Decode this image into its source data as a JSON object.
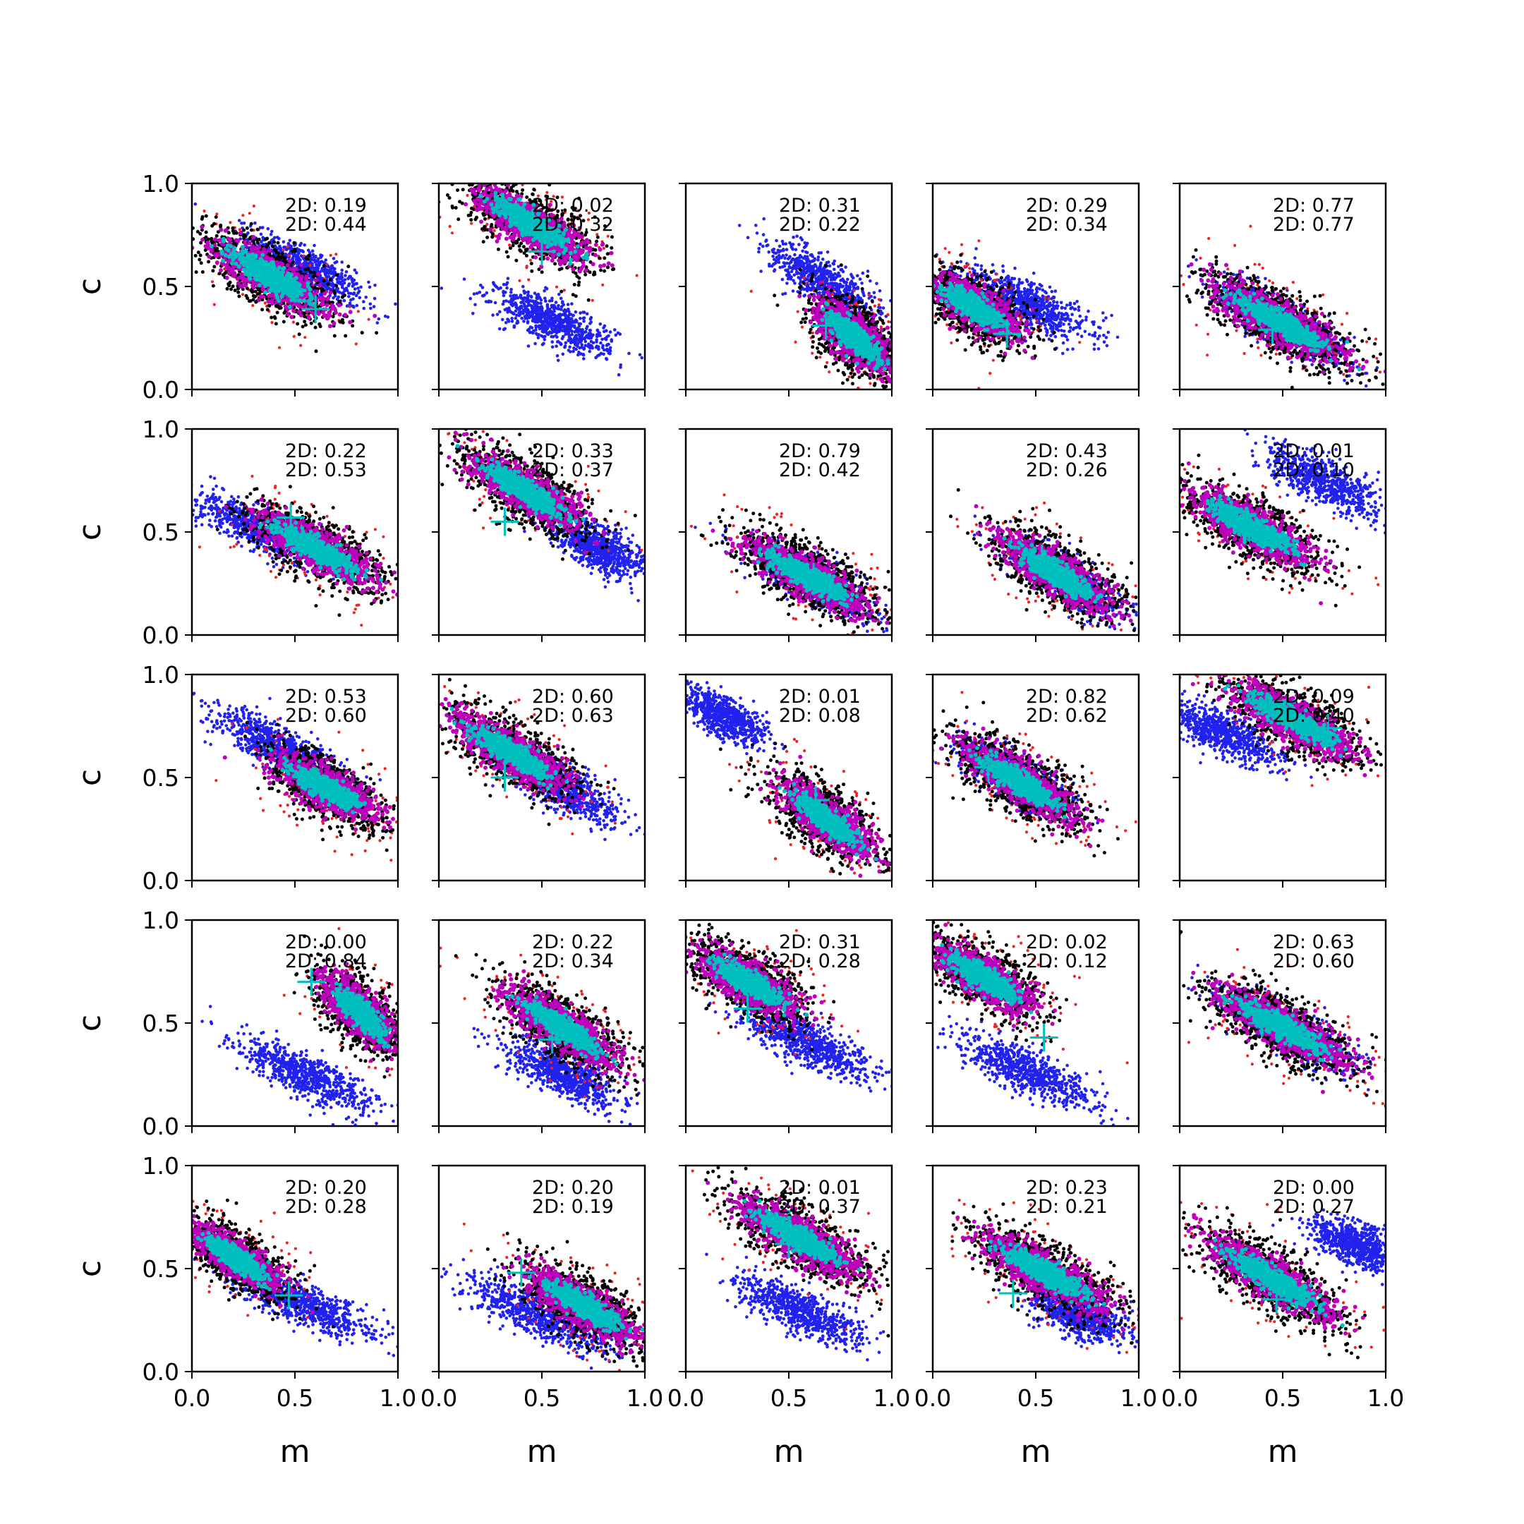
{
  "chart_data": {
    "type": "scatter",
    "layout": {
      "rows": 5,
      "cols": 5
    },
    "xlabel": "m",
    "ylabel": "c",
    "xlim": [
      0,
      1
    ],
    "ylim": [
      0,
      1
    ],
    "xticks": [
      "0.0",
      "0.5",
      "1.0"
    ],
    "yticks": [
      "0.0",
      "0.5",
      "1.0"
    ],
    "grid": false,
    "colors": {
      "blue": "#2222ee",
      "red": "#ee2222",
      "black": "#000000",
      "magenta": "#bf00bf",
      "cyan": "#00bfbf",
      "marker": "#00bfbf"
    },
    "panels": [
      {
        "annotations": [
          "2D: 0.19",
          "2D: 0.44"
        ],
        "truth": [
          0.6,
          0.39
        ],
        "main": {
          "mx": 0.38,
          "cy": 0.55,
          "len": 0.62,
          "wid": 0.1,
          "slope": -0.6
        },
        "blue": {
          "mx": 0.55,
          "cy": 0.58,
          "len": 0.55,
          "wid": 0.09,
          "slope": -0.55
        }
      },
      {
        "annotations": [
          "2D: 0.02",
          "2D: 0.32"
        ],
        "truth": [
          0.5,
          0.67
        ],
        "main": {
          "mx": 0.45,
          "cy": 0.8,
          "len": 0.62,
          "wid": 0.1,
          "slope": -0.6
        },
        "blue": {
          "mx": 0.55,
          "cy": 0.33,
          "len": 0.55,
          "wid": 0.09,
          "slope": -0.45
        }
      },
      {
        "annotations": [
          "2D: 0.31",
          "2D: 0.22"
        ],
        "truth": [
          0.68,
          0.31
        ],
        "main": {
          "mx": 0.82,
          "cy": 0.25,
          "len": 0.45,
          "wid": 0.1,
          "slope": -0.9
        },
        "blue": {
          "mx": 0.68,
          "cy": 0.52,
          "len": 0.55,
          "wid": 0.09,
          "slope": -0.65
        }
      },
      {
        "annotations": [
          "2D: 0.29",
          "2D: 0.34"
        ],
        "truth": [
          0.36,
          0.27
        ],
        "main": {
          "mx": 0.2,
          "cy": 0.4,
          "len": 0.5,
          "wid": 0.1,
          "slope": -0.6
        },
        "blue": {
          "mx": 0.45,
          "cy": 0.42,
          "len": 0.6,
          "wid": 0.09,
          "slope": -0.45
        }
      },
      {
        "annotations": [
          "2D: 0.77",
          "2D: 0.77"
        ],
        "truth": [
          0.45,
          0.29
        ],
        "main": {
          "mx": 0.48,
          "cy": 0.33,
          "len": 0.7,
          "wid": 0.1,
          "slope": -0.55
        },
        "blue": {
          "mx": 0.5,
          "cy": 0.32,
          "len": 0.65,
          "wid": 0.09,
          "slope": -0.55
        }
      },
      {
        "annotations": [
          "2D: 0.22",
          "2D: 0.53"
        ],
        "truth": [
          0.48,
          0.57
        ],
        "main": {
          "mx": 0.6,
          "cy": 0.42,
          "len": 0.62,
          "wid": 0.1,
          "slope": -0.55
        },
        "blue": {
          "mx": 0.3,
          "cy": 0.53,
          "len": 0.6,
          "wid": 0.09,
          "slope": -0.45
        }
      },
      {
        "annotations": [
          "2D: 0.33",
          "2D: 0.37"
        ],
        "truth": [
          0.32,
          0.55
        ],
        "main": {
          "mx": 0.42,
          "cy": 0.7,
          "len": 0.62,
          "wid": 0.1,
          "slope": -0.6
        },
        "blue": {
          "mx": 0.78,
          "cy": 0.42,
          "len": 0.45,
          "wid": 0.09,
          "slope": -0.5
        }
      },
      {
        "annotations": [
          "2D: 0.79",
          "2D: 0.42"
        ],
        "truth": [
          0.62,
          0.28
        ],
        "main": {
          "mx": 0.6,
          "cy": 0.28,
          "len": 0.65,
          "wid": 0.1,
          "slope": -0.55
        },
        "blue": {
          "mx": 0.62,
          "cy": 0.26,
          "len": 0.6,
          "wid": 0.09,
          "slope": -0.55
        }
      },
      {
        "annotations": [
          "2D: 0.43",
          "2D: 0.26"
        ],
        "truth": [
          0.53,
          0.37
        ],
        "main": {
          "mx": 0.6,
          "cy": 0.3,
          "len": 0.62,
          "wid": 0.1,
          "slope": -0.65
        },
        "blue": {
          "mx": 0.65,
          "cy": 0.27,
          "len": 0.55,
          "wid": 0.09,
          "slope": -0.6
        }
      },
      {
        "annotations": [
          "2D: 0.01",
          "2D: 0.10"
        ],
        "truth": [
          0.4,
          0.5
        ],
        "main": {
          "mx": 0.35,
          "cy": 0.52,
          "len": 0.65,
          "wid": 0.1,
          "slope": -0.55
        },
        "blue": {
          "mx": 0.7,
          "cy": 0.75,
          "len": 0.55,
          "wid": 0.09,
          "slope": -0.5
        }
      },
      {
        "annotations": [
          "2D: 0.53",
          "2D: 0.60"
        ],
        "truth": [
          0.6,
          0.48
        ],
        "main": {
          "mx": 0.65,
          "cy": 0.45,
          "len": 0.55,
          "wid": 0.1,
          "slope": -0.55
        },
        "blue": {
          "mx": 0.4,
          "cy": 0.65,
          "len": 0.6,
          "wid": 0.09,
          "slope": -0.55
        }
      },
      {
        "annotations": [
          "2D: 0.60",
          "2D: 0.63"
        ],
        "truth": [
          0.32,
          0.5
        ],
        "main": {
          "mx": 0.35,
          "cy": 0.62,
          "len": 0.62,
          "wid": 0.1,
          "slope": -0.6
        },
        "blue": {
          "mx": 0.6,
          "cy": 0.45,
          "len": 0.55,
          "wid": 0.09,
          "slope": -0.55
        }
      },
      {
        "annotations": [
          "2D: 0.01",
          "2D: 0.08"
        ],
        "truth": [
          0.63,
          0.39
        ],
        "main": {
          "mx": 0.68,
          "cy": 0.3,
          "len": 0.55,
          "wid": 0.1,
          "slope": -0.75
        },
        "blue": {
          "mx": 0.18,
          "cy": 0.8,
          "len": 0.4,
          "wid": 0.08,
          "slope": -0.55
        }
      },
      {
        "annotations": [
          "2D: 0.82",
          "2D: 0.62"
        ],
        "truth": [
          0.27,
          0.55
        ],
        "main": {
          "mx": 0.42,
          "cy": 0.48,
          "len": 0.62,
          "wid": 0.1,
          "slope": -0.65
        },
        "blue": {
          "mx": 0.4,
          "cy": 0.5,
          "len": 0.55,
          "wid": 0.09,
          "slope": -0.6
        }
      },
      {
        "annotations": [
          "2D: 0.09",
          "2D: 0.40"
        ],
        "truth": [
          0.72,
          0.74
        ],
        "main": {
          "mx": 0.55,
          "cy": 0.78,
          "len": 0.65,
          "wid": 0.1,
          "slope": -0.55
        },
        "blue": {
          "mx": 0.2,
          "cy": 0.72,
          "len": 0.55,
          "wid": 0.09,
          "slope": -0.45
        }
      },
      {
        "annotations": [
          "2D: 0.00",
          "2D: 0.84"
        ],
        "truth": [
          0.58,
          0.7
        ],
        "main": {
          "mx": 0.82,
          "cy": 0.55,
          "len": 0.45,
          "wid": 0.1,
          "slope": -1.0
        },
        "blue": {
          "mx": 0.55,
          "cy": 0.25,
          "len": 0.65,
          "wid": 0.09,
          "slope": -0.45
        }
      },
      {
        "annotations": [
          "2D: 0.22",
          "2D: 0.34"
        ],
        "truth": [
          0.55,
          0.42
        ],
        "main": {
          "mx": 0.6,
          "cy": 0.48,
          "len": 0.62,
          "wid": 0.1,
          "slope": -0.65
        },
        "blue": {
          "mx": 0.6,
          "cy": 0.25,
          "len": 0.55,
          "wid": 0.09,
          "slope": -0.5
        }
      },
      {
        "annotations": [
          "2D: 0.31",
          "2D: 0.28"
        ],
        "truth": [
          0.3,
          0.57
        ],
        "main": {
          "mx": 0.3,
          "cy": 0.7,
          "len": 0.55,
          "wid": 0.1,
          "slope": -0.6
        },
        "blue": {
          "mx": 0.6,
          "cy": 0.4,
          "len": 0.6,
          "wid": 0.09,
          "slope": -0.45
        }
      },
      {
        "annotations": [
          "2D: 0.02",
          "2D: 0.12"
        ],
        "truth": [
          0.54,
          0.43
        ],
        "main": {
          "mx": 0.25,
          "cy": 0.72,
          "len": 0.55,
          "wid": 0.1,
          "slope": -0.6
        },
        "blue": {
          "mx": 0.45,
          "cy": 0.27,
          "len": 0.65,
          "wid": 0.09,
          "slope": -0.45
        }
      },
      {
        "annotations": [
          "2D: 0.63",
          "2D: 0.60"
        ],
        "truth": [
          0.4,
          0.5
        ],
        "main": {
          "mx": 0.5,
          "cy": 0.48,
          "len": 0.68,
          "wid": 0.1,
          "slope": -0.55
        },
        "blue": {
          "mx": 0.52,
          "cy": 0.47,
          "len": 0.62,
          "wid": 0.09,
          "slope": -0.55
        }
      },
      {
        "annotations": [
          "2D: 0.20",
          "2D: 0.28"
        ],
        "truth": [
          0.47,
          0.37
        ],
        "main": {
          "mx": 0.22,
          "cy": 0.55,
          "len": 0.5,
          "wid": 0.09,
          "slope": -0.65
        },
        "blue": {
          "mx": 0.55,
          "cy": 0.32,
          "len": 0.65,
          "wid": 0.08,
          "slope": -0.4
        }
      },
      {
        "annotations": [
          "2D: 0.20",
          "2D: 0.19"
        ],
        "truth": [
          0.4,
          0.48
        ],
        "main": {
          "mx": 0.7,
          "cy": 0.32,
          "len": 0.6,
          "wid": 0.1,
          "slope": -0.6
        },
        "blue": {
          "mx": 0.48,
          "cy": 0.28,
          "len": 0.7,
          "wid": 0.09,
          "slope": -0.45
        }
      },
      {
        "annotations": [
          "2D: 0.01",
          "2D: 0.37"
        ],
        "truth": [
          0.5,
          0.62
        ],
        "main": {
          "mx": 0.55,
          "cy": 0.65,
          "len": 0.68,
          "wid": 0.1,
          "slope": -0.6
        },
        "blue": {
          "mx": 0.55,
          "cy": 0.3,
          "len": 0.6,
          "wid": 0.09,
          "slope": -0.45
        }
      },
      {
        "annotations": [
          "2D: 0.23",
          "2D: 0.21"
        ],
        "truth": [
          0.39,
          0.38
        ],
        "main": {
          "mx": 0.55,
          "cy": 0.48,
          "len": 0.68,
          "wid": 0.1,
          "slope": -0.55
        },
        "blue": {
          "mx": 0.7,
          "cy": 0.28,
          "len": 0.45,
          "wid": 0.09,
          "slope": -0.45
        }
      },
      {
        "annotations": [
          "2D: 0.00",
          "2D: 0.27"
        ],
        "truth": [
          0.47,
          0.35
        ],
        "main": {
          "mx": 0.45,
          "cy": 0.45,
          "len": 0.7,
          "wid": 0.1,
          "slope": -0.6
        },
        "blue": {
          "mx": 0.85,
          "cy": 0.62,
          "len": 0.4,
          "wid": 0.09,
          "slope": -0.4
        }
      }
    ]
  }
}
